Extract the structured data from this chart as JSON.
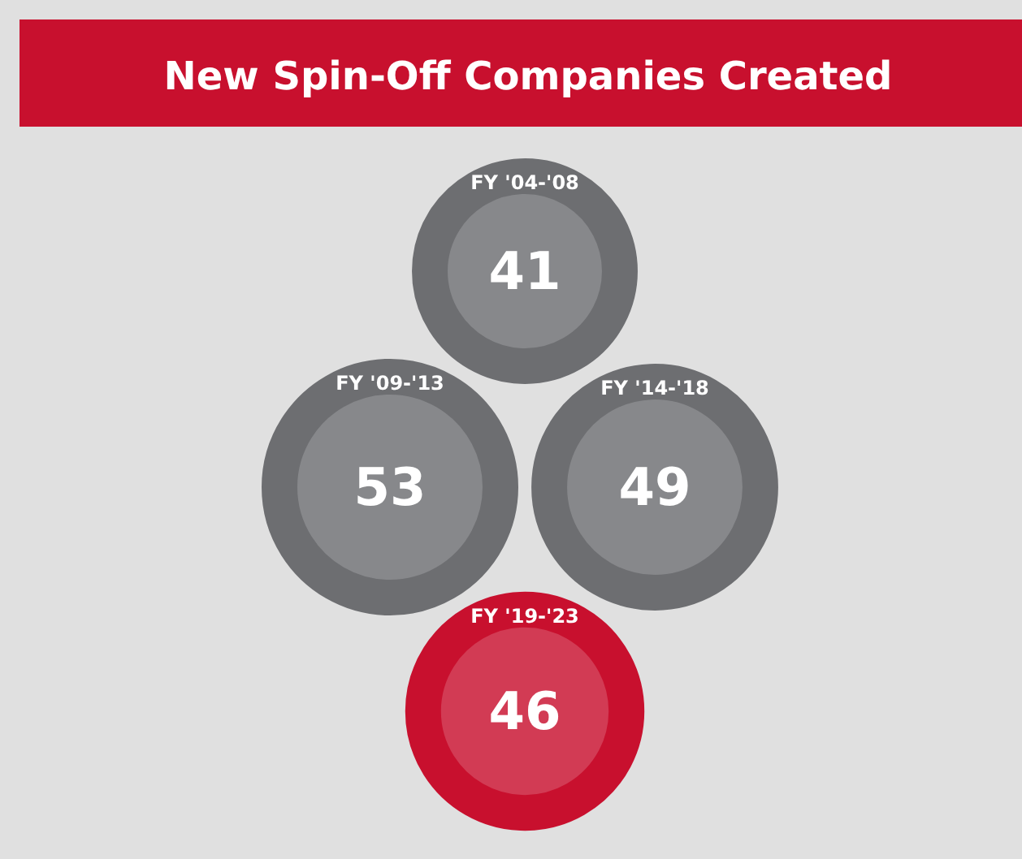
{
  "chart_data": {
    "type": "other",
    "title": "New Spin-Off Companies Created",
    "categories": [
      "FY '04-'08",
      "FY '09-'13",
      "FY '14-'18",
      "FY '19-'23"
    ],
    "values": [
      41,
      53,
      49,
      46
    ],
    "colors": [
      "#6d6e71",
      "#6d6e71",
      "#6d6e71",
      "#c8102e"
    ],
    "data_labels": true
  }
}
